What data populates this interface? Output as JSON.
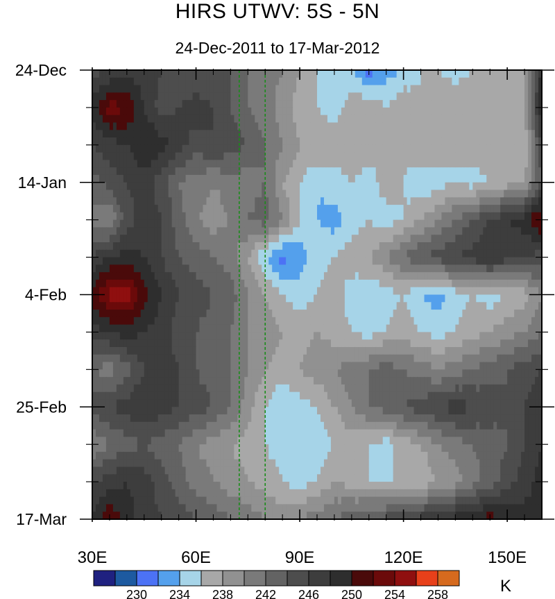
{
  "chart_data": {
    "type": "heatmap",
    "title": "HIRS UTWV: 5S - 5N",
    "subtitle": "24-Dec-2011 to 17-Mar-2012",
    "x": {
      "ticks": [
        30,
        60,
        90,
        120,
        150
      ],
      "tick_labels": [
        "30E",
        "60E",
        "90E",
        "120E",
        "150E"
      ],
      "range": [
        30,
        160
      ]
    },
    "y": {
      "ticks": [
        "2011-12-24",
        "2012-01-14",
        "2012-02-04",
        "2012-02-25",
        "2012-03-17"
      ],
      "tick_labels": [
        "24-Dec",
        "14-Jan",
        "4-Feb",
        "25-Feb",
        "17-Mar"
      ],
      "range": [
        "2011-12-24",
        "2012-03-17"
      ],
      "direction": "time increases downward"
    },
    "reference_lines": [
      {
        "orientation": "vertical",
        "x": 72.5,
        "color": "#1a8c1a",
        "style": "dashed"
      },
      {
        "orientation": "vertical",
        "x": 80,
        "color": "#1a8c1a",
        "style": "dashed"
      }
    ],
    "colorbar": {
      "unit": "K",
      "tick_labels": [
        "230",
        "234",
        "238",
        "242",
        "246",
        "250",
        "254",
        "258"
      ],
      "boundaries": [
        228,
        230,
        232,
        234,
        236,
        238,
        240,
        242,
        244,
        246,
        248,
        250,
        252,
        254,
        256,
        258
      ],
      "colors": [
        "#1f2180",
        "#1d5aa0",
        "#4c72f5",
        "#54a0ec",
        "#a6d4e8",
        "#a8a8a8",
        "#919191",
        "#7a7a7a",
        "#636363",
        "#4d4d4d",
        "#3d3d3d",
        "#2e2e2e",
        "#4a0a0a",
        "#6b0a0a",
        "#8f0f0f",
        "#e8401a",
        "#d66a1e"
      ]
    },
    "grid": {
      "x": [
        30,
        35,
        40,
        45,
        50,
        55,
        60,
        65,
        70,
        75,
        80,
        85,
        90,
        95,
        100,
        105,
        110,
        115,
        120,
        125,
        130,
        135,
        140,
        145,
        150,
        155,
        160
      ],
      "y": [
        "2011-12-24",
        "2011-12-31",
        "2012-01-07",
        "2012-01-14",
        "2012-01-21",
        "2012-01-28",
        "2012-02-04",
        "2012-02-11",
        "2012-02-18",
        "2012-02-25",
        "2012-03-03",
        "2012-03-10",
        "2012-03-17"
      ],
      "values": [
        [
          245,
          246,
          247,
          247,
          246,
          245,
          244,
          245,
          244,
          242,
          241,
          240,
          238,
          236,
          236,
          234,
          231,
          233,
          234,
          236,
          236,
          235,
          236,
          237,
          236,
          237,
          249
        ],
        [
          249,
          253,
          252,
          248,
          245,
          246,
          247,
          246,
          244,
          242,
          241,
          239,
          237,
          236,
          235,
          237,
          238,
          236,
          238,
          236,
          237,
          238,
          237,
          236,
          237,
          238,
          250
        ],
        [
          246,
          247,
          248,
          250,
          249,
          247,
          245,
          246,
          245,
          244,
          242,
          240,
          238,
          238,
          237,
          238,
          237,
          236,
          237,
          238,
          237,
          236,
          237,
          238,
          237,
          236,
          246
        ],
        [
          243,
          245,
          246,
          247,
          245,
          242,
          241,
          240,
          241,
          241,
          242,
          238,
          236,
          234,
          235,
          236,
          235,
          237,
          236,
          234,
          235,
          236,
          235,
          236,
          237,
          238,
          244
        ],
        [
          241,
          240,
          245,
          247,
          246,
          243,
          240,
          239,
          240,
          242,
          243,
          240,
          236,
          234,
          233,
          235,
          236,
          235,
          236,
          238,
          240,
          242,
          244,
          246,
          248,
          249,
          253
        ],
        [
          246,
          248,
          249,
          248,
          246,
          244,
          243,
          242,
          241,
          238,
          234,
          231,
          233,
          235,
          236,
          237,
          238,
          240,
          242,
          244,
          245,
          246,
          247,
          248,
          247,
          246,
          245
        ],
        [
          251,
          255,
          255,
          251,
          248,
          246,
          245,
          244,
          243,
          240,
          238,
          236,
          235,
          236,
          237,
          235,
          234,
          235,
          236,
          234,
          233,
          235,
          236,
          235,
          236,
          237,
          240
        ],
        [
          247,
          248,
          249,
          248,
          247,
          245,
          244,
          243,
          242,
          240,
          239,
          238,
          237,
          238,
          237,
          236,
          235,
          236,
          237,
          236,
          235,
          236,
          237,
          238,
          239,
          240,
          242
        ],
        [
          242,
          241,
          243,
          246,
          247,
          246,
          244,
          243,
          242,
          240,
          238,
          237,
          238,
          239,
          240,
          241,
          242,
          243,
          242,
          241,
          240,
          241,
          242,
          243,
          244,
          245,
          246
        ],
        [
          245,
          246,
          247,
          248,
          247,
          246,
          245,
          244,
          242,
          239,
          236,
          234,
          235,
          236,
          238,
          240,
          242,
          243,
          244,
          245,
          246,
          247,
          246,
          245,
          244,
          246,
          247
        ],
        [
          240,
          242,
          243,
          244,
          243,
          242,
          240,
          239,
          238,
          237,
          236,
          235,
          236,
          235,
          236,
          237,
          236,
          235,
          237,
          238,
          240,
          241,
          242,
          243,
          244,
          246,
          248
        ],
        [
          246,
          247,
          248,
          247,
          245,
          243,
          241,
          240,
          239,
          238,
          237,
          236,
          235,
          236,
          238,
          237,
          236,
          235,
          237,
          236,
          238,
          239,
          241,
          243,
          245,
          247,
          249
        ],
        [
          248,
          252,
          249,
          247,
          246,
          245,
          244,
          243,
          242,
          241,
          240,
          239,
          240,
          241,
          242,
          243,
          244,
          245,
          246,
          247,
          248,
          249,
          250,
          251,
          250,
          249,
          248
        ]
      ]
    }
  }
}
